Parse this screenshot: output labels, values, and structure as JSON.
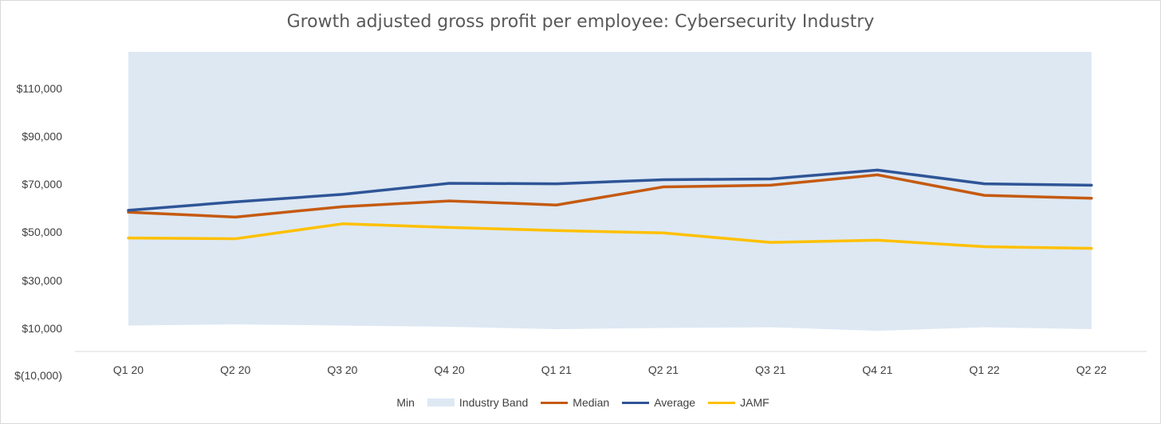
{
  "chart_data": {
    "type": "line",
    "title": "Growth adjusted gross profit per employee: Cybersecurity Industry",
    "categories": [
      "Q1 20",
      "Q2 20",
      "Q3 20",
      "Q4 20",
      "Q1 21",
      "Q2 21",
      "Q3 21",
      "Q4 21",
      "Q1 22",
      "Q2 22"
    ],
    "y_ticks": [
      "$110,000",
      "$90,000",
      "$70,000",
      "$50,000",
      "$30,000",
      "$10,000",
      "$(10,000)"
    ],
    "ylim": [
      -10000,
      120000
    ],
    "band": {
      "name": "Industry Band",
      "min_name": "Min",
      "min": [
        11500,
        12000,
        11500,
        11000,
        10000,
        10500,
        10800,
        9300,
        10800,
        10000
      ],
      "max": [
        125000,
        125000,
        125000,
        125000,
        125000,
        125000,
        125000,
        125000,
        125000,
        125000
      ],
      "color": "#dde8f3"
    },
    "series": [
      {
        "name": "Median",
        "color": "#c55a11",
        "values": [
          58500,
          56500,
          60800,
          63200,
          61500,
          69000,
          69700,
          74000,
          65500,
          64300
        ]
      },
      {
        "name": "Average",
        "color": "#2f5597",
        "values": [
          59300,
          62800,
          65900,
          70500,
          70300,
          72000,
          72300,
          76000,
          70300,
          69700
        ]
      },
      {
        "name": "JAMF",
        "color": "#ffc000",
        "values": [
          47800,
          47500,
          53700,
          52200,
          50900,
          49900,
          46000,
          46900,
          44200,
          43500
        ]
      }
    ],
    "legend_position": "bottom",
    "grid": false
  }
}
